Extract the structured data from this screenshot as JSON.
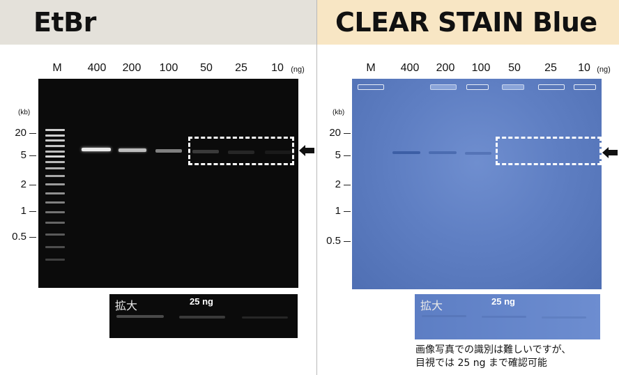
{
  "left": {
    "title": "EtBr",
    "lanes": [
      "M",
      "400",
      "200",
      "100",
      "50",
      "25",
      "10"
    ],
    "unit": "(ng)",
    "kb_label": "(kb)",
    "sizes": [
      "20",
      "5",
      "2",
      "1",
      "0.5"
    ],
    "zoom_label": "拡大",
    "zoom_ng": "25 ng"
  },
  "right": {
    "title": "CLEAR STAIN Blue",
    "lanes": [
      "M",
      "400",
      "200",
      "100",
      "50",
      "25",
      "10"
    ],
    "unit": "(ng)",
    "kb_label": "(kb)",
    "sizes": [
      "20",
      "5",
      "2",
      "1",
      "0.5"
    ],
    "zoom_label": "拡大",
    "zoom_ng": "25 ng",
    "note_line1": "画像写真での識別は難しいですが、",
    "note_line2": "目視では 25 ng まで確認可能"
  },
  "colors": {
    "left_header": "#e4e1da",
    "right_header": "#f8e6c4",
    "etbr_gel": "#0b0b0b",
    "blue_gel": "#5f7fc3"
  },
  "icons": [
    "arrow-left-icon"
  ]
}
